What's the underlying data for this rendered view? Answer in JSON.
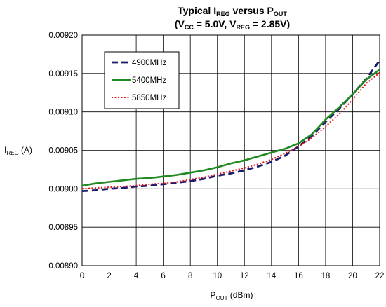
{
  "chart_data": {
    "type": "line",
    "title": {
      "line1": {
        "prefix": "Typical I",
        "sub1": "REG",
        "mid": " versus P",
        "sub2": "OUT"
      },
      "line2": {
        "p1": "(V",
        "sub1": "CC",
        "p2": " = 5.0V, V",
        "sub2": "REG",
        "p3": " = 2.85V)"
      }
    },
    "xlabel": {
      "main": "P",
      "sub": "OUT",
      "rest": " (dBm)"
    },
    "ylabel": {
      "main": "I",
      "sub": "REG",
      "rest": " (A)"
    },
    "xlim": [
      0,
      22
    ],
    "ylim": [
      0.0089,
      0.0092
    ],
    "x_ticks": [
      0,
      2,
      4,
      6,
      8,
      10,
      12,
      14,
      16,
      18,
      20,
      22
    ],
    "y_ticks": [
      "0.00890",
      "0.00895",
      "0.00900",
      "0.00905",
      "0.00910",
      "0.00915",
      "0.00920"
    ],
    "grid": true,
    "legend_position": "top-left",
    "series": [
      {
        "name": "4900MHz",
        "color": "#1a1a6e",
        "style": "dashed",
        "x": [
          0,
          1,
          2,
          3,
          4,
          5,
          6,
          7,
          8,
          9,
          10,
          11,
          12,
          13,
          14,
          15,
          16,
          17,
          18,
          19,
          20,
          21,
          22
        ],
        "y": [
          0.008997,
          0.008998,
          0.009,
          0.009001,
          0.009003,
          0.009004,
          0.009006,
          0.009008,
          0.00901,
          0.009013,
          0.009017,
          0.00902,
          0.009024,
          0.009029,
          0.009035,
          0.009043,
          0.009055,
          0.009069,
          0.009087,
          0.009104,
          0.009123,
          0.009143,
          0.009167
        ]
      },
      {
        "name": "5400MHz",
        "color": "#1f8a1f",
        "style": "solid",
        "x": [
          0,
          1,
          2,
          3,
          4,
          5,
          6,
          7,
          8,
          9,
          10,
          11,
          12,
          13,
          14,
          15,
          16,
          17,
          18,
          19,
          20,
          21,
          22
        ],
        "y": [
          0.009004,
          0.009007,
          0.009009,
          0.009011,
          0.009013,
          0.009014,
          0.009016,
          0.009018,
          0.009021,
          0.009024,
          0.009028,
          0.009033,
          0.009037,
          0.009042,
          0.009047,
          0.009052,
          0.009059,
          0.009071,
          0.00909,
          0.009106,
          0.009123,
          0.009142,
          0.009155
        ]
      },
      {
        "name": "5850MHz",
        "color": "#e0141e",
        "style": "dotted",
        "x": [
          0,
          1,
          2,
          3,
          4,
          5,
          6,
          7,
          8,
          9,
          10,
          11,
          12,
          13,
          14,
          15,
          16,
          17,
          18,
          19,
          20,
          21,
          22
        ],
        "y": [
          0.009,
          0.009001,
          0.009002,
          0.009003,
          0.009004,
          0.009006,
          0.009007,
          0.009009,
          0.009012,
          0.009015,
          0.009019,
          0.009023,
          0.009027,
          0.009032,
          0.009038,
          0.009046,
          0.009055,
          0.009066,
          0.009081,
          0.009097,
          0.009116,
          0.009137,
          0.009151
        ]
      }
    ]
  }
}
